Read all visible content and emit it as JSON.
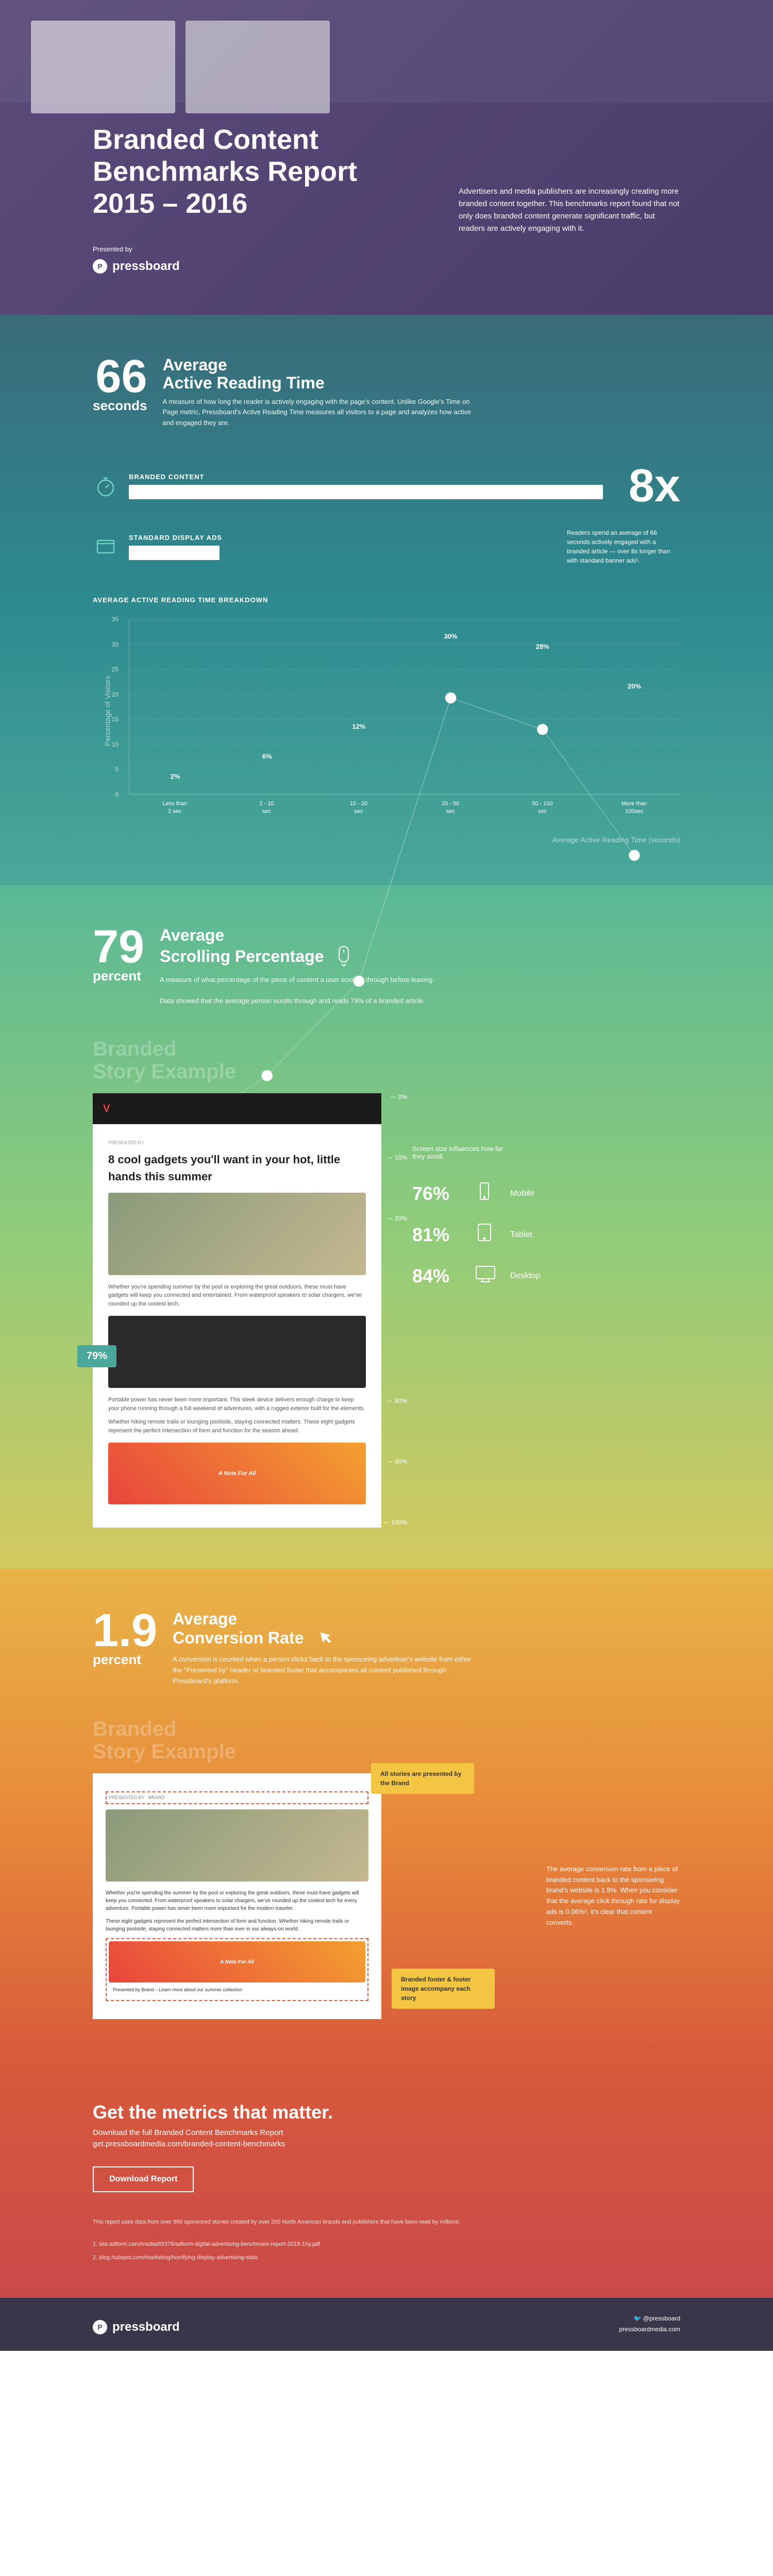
{
  "hero": {
    "title_l1": "Branded Content",
    "title_l2": "Benchmarks Report",
    "title_l3": "2015 – 2016",
    "presented_by": "Presented by",
    "brand": "pressboard",
    "intro": "Advertisers and media publishers are increasingly creating more branded content together. This benchmarks report found that not only does branded content generate significant traffic, but readers are actively engaging with it."
  },
  "reading": {
    "num": "66",
    "unit": "seconds",
    "title_l1": "Average",
    "title_l2": "Active Reading Time",
    "desc": "A measure of how long the reader is actively engaging with the page's content. Unlike Google's Time on Page metric, Pressboard's Active Reading Time measures all visitors to a page and analyzes how active and engaged they are.",
    "bar1_label": "BRANDED CONTENT",
    "bar2_label": "STANDARD DISPLAY ADS",
    "bar1_width": 100,
    "bar2_width": 22,
    "multiplier": "8x",
    "note": "Readers spend an average of 66 seconds actively engaged with a branded article — over 8x longer than with standard banner ads¹.",
    "bar_color": "#ffffff",
    "icon_color": "#6dd4c4"
  },
  "chart": {
    "title": "AVERAGE ACTIVE READING TIME BREAKDOWN",
    "y_label": "Percentage of Visitors",
    "x_label": "Average Active Reading Time (seconds)",
    "y_ticks": [
      0,
      5,
      10,
      15,
      20,
      25,
      30,
      35
    ],
    "y_max": 35,
    "categories": [
      "Less than\n2 sec",
      "2 - 10\nsec",
      "10 - 20\nsec",
      "20 - 50\nsec",
      "50 - 100\nsec",
      "More than\n100sec"
    ],
    "values": [
      2,
      6,
      12,
      30,
      28,
      20
    ],
    "line_color": "#ffffff",
    "point_color": "#6dd4c4",
    "background": "transparent"
  },
  "scroll": {
    "num": "79",
    "unit": "percent",
    "title_l1": "Average",
    "title_l2": "Scrolling Percentage",
    "desc": "A measure of what percentage of the piece of content a user scrolled through before leaving.",
    "fact": "Data showed that the average person scrolls through and reads 79% of a branded article.",
    "story_title_l1": "Branded",
    "story_title_l2": "Story Example",
    "headline": "8 cool gadgets you'll want in your hot, little hands this summer",
    "badge": "79%",
    "marks": [
      "0%",
      "10%",
      "20%",
      "80%",
      "90%",
      "100%"
    ],
    "mark_positions": [
      0,
      14,
      28,
      70,
      84,
      98
    ],
    "dev_note": "Screen size influences how far they scroll.",
    "devices": [
      {
        "pct": "76%",
        "label": "Mobile",
        "icon": "mobile"
      },
      {
        "pct": "81%",
        "label": "Tablet",
        "icon": "tablet"
      },
      {
        "pct": "84%",
        "label": "Desktop",
        "icon": "desktop"
      }
    ]
  },
  "conversion": {
    "num": "1.9",
    "unit": "percent",
    "title_l1": "Average",
    "title_l2": "Conversion Rate",
    "desc": "A conversion is counted when a person clicks back to the sponsoring advertiser's website from either the \"Presented by\" header or branded footer that accompanies all content published through Pressboard's platform.",
    "story_title_l1": "Branded",
    "story_title_l2": "Story Example",
    "callout1": "All stories are presented by the Brand",
    "callout2": "Branded footer & footer image accompany each story",
    "note": "The average conversion rate from a piece of branded content back to the sponsoring brand's website is 1.9%. When you consider that the average click through rate for display ads is 0.06%², it's clear that content converts."
  },
  "cta": {
    "title": "Get the metrics that matter.",
    "sub1": "Download the full Branded Content Benchmarks Report",
    "sub2": "get.pressboardmedia.com/branded-content-benchmarks",
    "button": "Download Report",
    "footnote_main": "This report uses data from over 900 sponsored stories created by over 200 North American brands and publishers that have been read by millions.",
    "ref1": "1. site.adform.com/media/65376/adform-digital-advertising-benchmark-report-2015-1hy.pdf",
    "ref2": "2. blog.hubspot.com/marketing/horrifying-display-advertising-stats"
  },
  "footer": {
    "brand": "pressboard",
    "twitter": "@pressboard",
    "site": "pressboardmedia.com"
  }
}
